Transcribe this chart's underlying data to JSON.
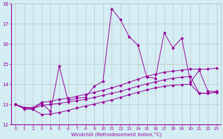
{
  "xlabel": "Windchill (Refroidissement éolien,°C)",
  "x": [
    0,
    1,
    2,
    3,
    4,
    5,
    6,
    7,
    8,
    9,
    10,
    11,
    12,
    13,
    14,
    15,
    16,
    17,
    18,
    19,
    20,
    21,
    22,
    23
  ],
  "y_jagged": [
    13.0,
    12.8,
    12.8,
    13.05,
    12.65,
    14.9,
    13.2,
    13.3,
    13.35,
    13.9,
    14.15,
    17.75,
    17.2,
    16.35,
    15.95,
    14.35,
    14.3,
    16.55,
    15.8,
    16.3,
    14.1,
    14.7,
    13.65,
    13.65
  ],
  "y_upper": [
    13.0,
    12.85,
    12.85,
    13.1,
    13.15,
    13.25,
    13.3,
    13.4,
    13.5,
    13.6,
    13.7,
    13.82,
    13.95,
    14.1,
    14.25,
    14.4,
    14.5,
    14.6,
    14.65,
    14.7,
    14.75,
    14.75,
    14.75,
    14.8
  ],
  "y_mid": [
    13.0,
    12.8,
    12.78,
    12.95,
    13.0,
    13.05,
    13.12,
    13.18,
    13.25,
    13.35,
    13.45,
    13.55,
    13.65,
    13.78,
    13.9,
    14.02,
    14.12,
    14.22,
    14.3,
    14.35,
    14.38,
    13.55,
    13.55,
    13.6
  ],
  "y_bottom": [
    13.0,
    12.78,
    12.75,
    12.5,
    12.52,
    12.6,
    12.7,
    12.82,
    12.92,
    13.02,
    13.12,
    13.22,
    13.35,
    13.48,
    13.6,
    13.72,
    13.82,
    13.9,
    13.95,
    13.98,
    14.0,
    13.55,
    13.55,
    13.6
  ],
  "color": "#990099",
  "bg_color": "#d4eef4",
  "grid_color": "#bbbbbb",
  "ylim": [
    12,
    18
  ],
  "xlim": [
    0,
    23
  ]
}
